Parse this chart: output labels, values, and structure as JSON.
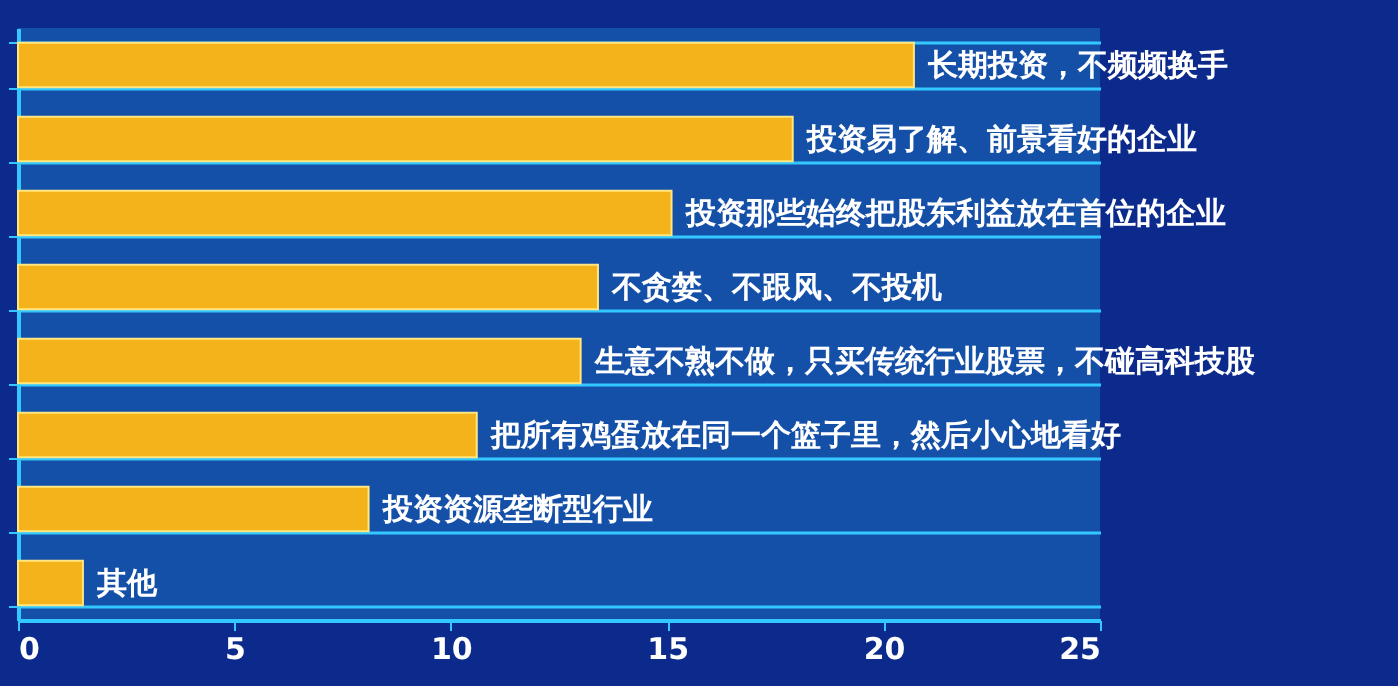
{
  "chart_data": {
    "type": "bar",
    "orientation": "horizontal",
    "categories": [
      "长期投资，不频频换手",
      "投资易了解、前景看好的企业",
      "投资那些始终把股东利益放在首位的企业",
      "不贪婪、不跟风、不投机",
      "生意不熟不做，只买传统行业股票，不碰高科技股",
      "把所有鸡蛋放在同一个篮子里，然后小心地看好",
      "投资资源垄断型行业",
      "其他"
    ],
    "values": [
      20.7,
      17.9,
      15.1,
      13.4,
      13.0,
      10.6,
      8.1,
      1.5
    ],
    "color": "#f4b31a",
    "xlim": [
      0,
      25
    ],
    "xticks": [
      0,
      5,
      10,
      15,
      20,
      25
    ],
    "grid": "y"
  }
}
